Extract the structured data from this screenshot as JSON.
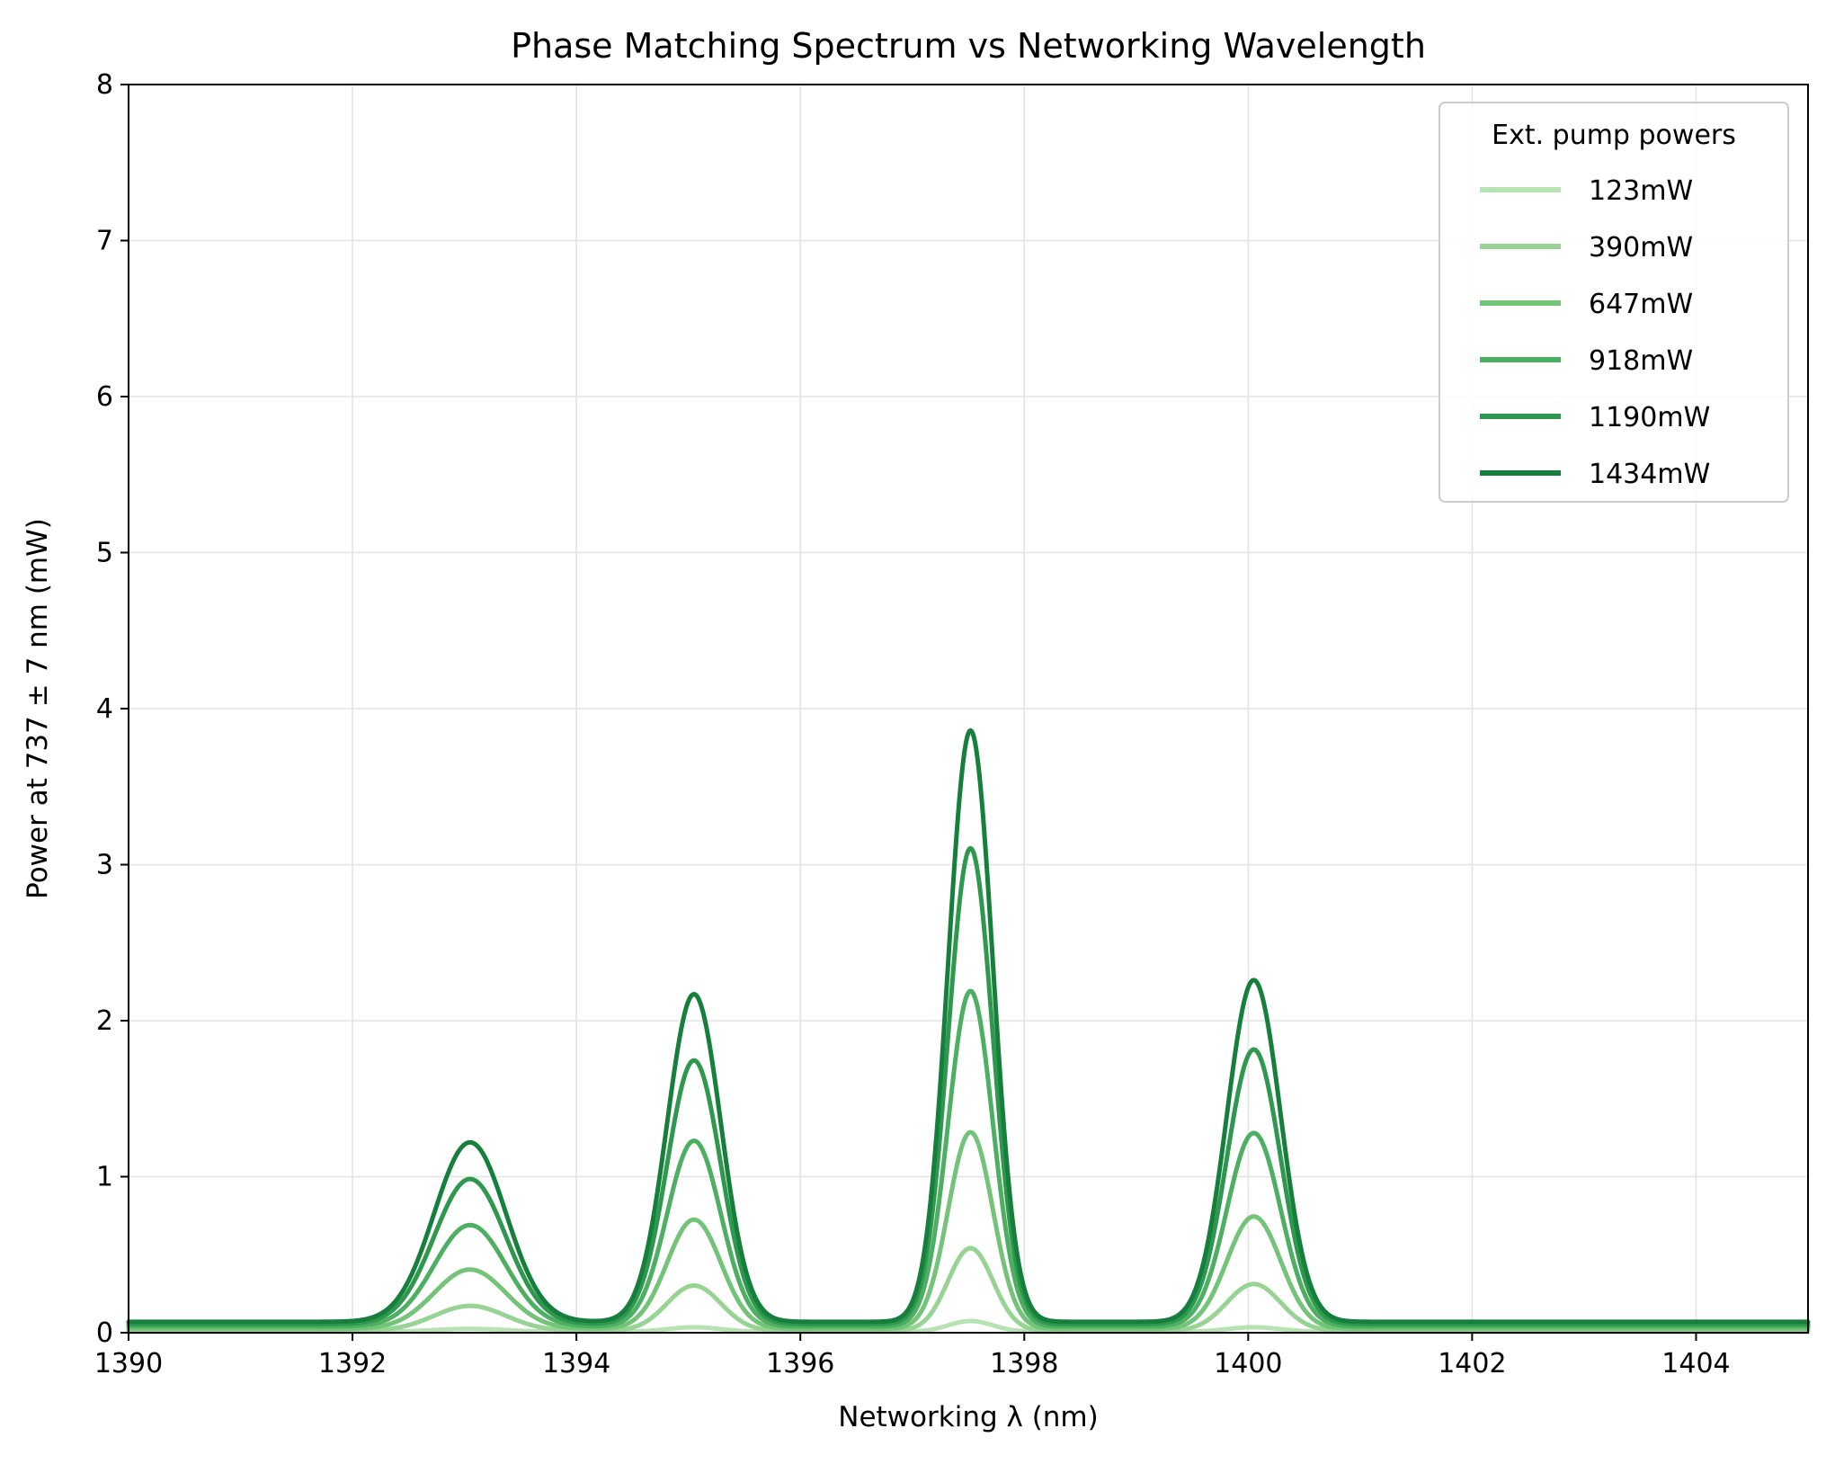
{
  "chart_data": {
    "type": "line",
    "title": "Phase Matching Spectrum vs Networking Wavelength",
    "xlabel": "Networking λ (nm)",
    "ylabel": "Power at 737 ± 7 nm (mW)",
    "xlim": [
      1390,
      1405
    ],
    "ylim": [
      0,
      8
    ],
    "xticks": [
      "1390",
      "1392",
      "1394",
      "1396",
      "1398",
      "1400",
      "1402",
      "1404"
    ],
    "yticks": [
      "0",
      "1",
      "2",
      "3",
      "4",
      "5",
      "6",
      "7",
      "8"
    ],
    "grid": true,
    "legend": {
      "title": "Ext. pump powers",
      "placement": "top-right"
    },
    "peaks": [
      {
        "center": 1393.05,
        "width": 0.32
      },
      {
        "center": 1395.05,
        "width": 0.24
      },
      {
        "center": 1397.52,
        "width": 0.2
      },
      {
        "center": 1400.05,
        "width": 0.24
      }
    ],
    "series": [
      {
        "name": "123mW",
        "color": "#b7e2b1",
        "peak_values": [
          0.02,
          0.03,
          0.07,
          0.03
        ],
        "baseline": 0.005
      },
      {
        "name": "390mW",
        "color": "#97d494",
        "peak_values": [
          0.16,
          0.29,
          0.53,
          0.3
        ],
        "baseline": 0.012
      },
      {
        "name": "647mW",
        "color": "#73c378",
        "peak_values": [
          0.38,
          0.7,
          1.26,
          0.72
        ],
        "baseline": 0.025
      },
      {
        "name": "918mW",
        "color": "#4daf62",
        "peak_values": [
          0.65,
          1.19,
          2.15,
          1.24
        ],
        "baseline": 0.04
      },
      {
        "name": "1190mW",
        "color": "#2f984f",
        "peak_values": [
          0.93,
          1.69,
          3.05,
          1.76
        ],
        "baseline": 0.055
      },
      {
        "name": "1434mW",
        "color": "#157f3b",
        "peak_values": [
          1.15,
          2.1,
          3.79,
          2.19
        ],
        "baseline": 0.07
      }
    ]
  }
}
